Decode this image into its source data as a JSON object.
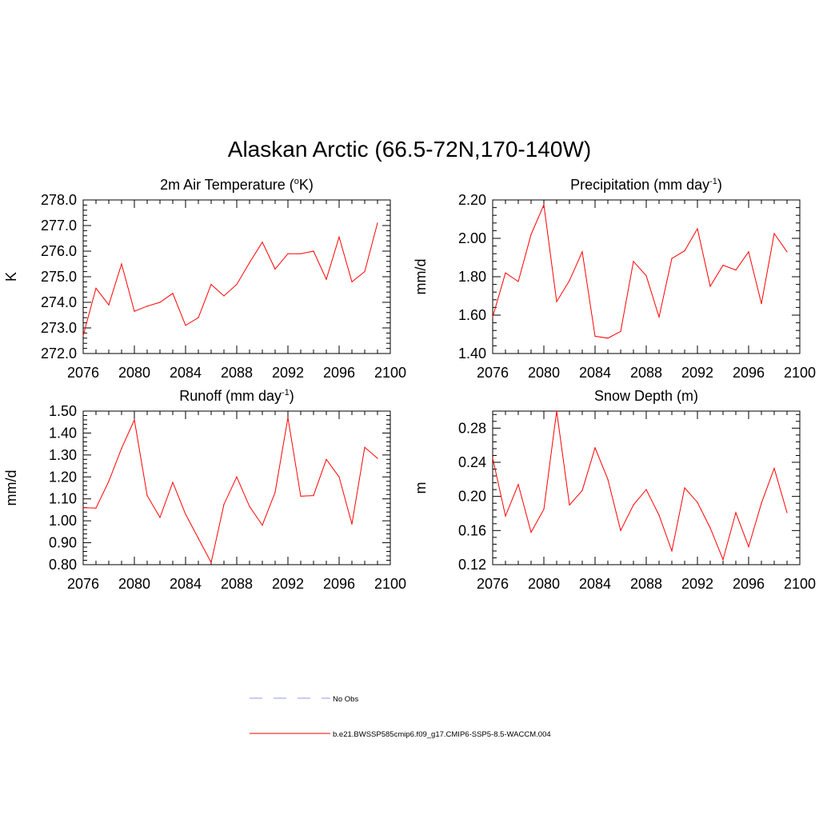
{
  "title": "Alaskan Arctic (66.5-72N,170-140W)",
  "legend": {
    "items": [
      {
        "label": "No Obs",
        "color": "#9a9ae0",
        "style": "dashed"
      },
      {
        "label": "b.e21.BWSSP585cmip6.f09_g17.CMIP6-SSP5-8.5-WACCM.004",
        "color": "#ff0000",
        "style": "solid"
      }
    ]
  },
  "chart_data": [
    {
      "type": "line",
      "title": "2m Air Temperature (",
      "title_sup": "o",
      "title_after": "K)",
      "ylabel": "K",
      "xlim": [
        2076,
        2100
      ],
      "ylim": [
        272.0,
        278.0
      ],
      "xticks": [
        "2076",
        "2080",
        "2084",
        "2088",
        "2092",
        "2096",
        "2100"
      ],
      "yticks": [
        "272.0",
        "273.0",
        "274.0",
        "275.0",
        "276.0",
        "277.0",
        "278.0"
      ],
      "x": [
        2076,
        2077,
        2078,
        2079,
        2080,
        2081,
        2082,
        2083,
        2084,
        2085,
        2086,
        2087,
        2088,
        2089,
        2090,
        2091,
        2092,
        2093,
        2094,
        2095,
        2096,
        2097,
        2098,
        2099
      ],
      "series": [
        {
          "color": "#ff0000",
          "values": [
            272.7,
            274.55,
            273.9,
            275.5,
            273.65,
            273.85,
            274.0,
            274.35,
            273.1,
            273.4,
            274.7,
            274.25,
            274.7,
            275.55,
            276.35,
            275.3,
            275.9,
            275.9,
            276.0,
            274.9,
            276.55,
            274.8,
            275.2,
            277.1
          ]
        }
      ]
    },
    {
      "type": "line",
      "title": "Precipitation (mm day",
      "title_sup": "-1",
      "title_after": ")",
      "ylabel": "mm/d",
      "xlim": [
        2076,
        2100
      ],
      "ylim": [
        1.4,
        2.2
      ],
      "xticks": [
        "2076",
        "2080",
        "2084",
        "2088",
        "2092",
        "2096",
        "2100"
      ],
      "yticks": [
        "1.40",
        "1.60",
        "1.80",
        "2.00",
        "2.20"
      ],
      "x": [
        2076,
        2077,
        2078,
        2079,
        2080,
        2081,
        2082,
        2083,
        2084,
        2085,
        2086,
        2087,
        2088,
        2089,
        2090,
        2091,
        2092,
        2093,
        2094,
        2095,
        2096,
        2097,
        2098,
        2099
      ],
      "series": [
        {
          "color": "#ff0000",
          "values": [
            1.59,
            1.82,
            1.775,
            2.02,
            2.175,
            1.67,
            1.78,
            1.93,
            1.49,
            1.48,
            1.515,
            1.88,
            1.805,
            1.59,
            1.895,
            1.935,
            2.05,
            1.75,
            1.86,
            1.835,
            1.93,
            1.66,
            2.025,
            1.93
          ]
        }
      ]
    },
    {
      "type": "line",
      "title": "Runoff (mm day",
      "title_sup": "-1",
      "title_after": ")",
      "ylabel": "mm/d",
      "xlim": [
        2076,
        2100
      ],
      "ylim": [
        0.8,
        1.5
      ],
      "xticks": [
        "2076",
        "2080",
        "2084",
        "2088",
        "2092",
        "2096",
        "2100"
      ],
      "yticks": [
        "0.80",
        "0.90",
        "1.00",
        "1.10",
        "1.20",
        "1.30",
        "1.40",
        "1.50"
      ],
      "x": [
        2076,
        2077,
        2078,
        2079,
        2080,
        2081,
        2082,
        2083,
        2084,
        2085,
        2086,
        2087,
        2088,
        2089,
        2090,
        2091,
        2092,
        2093,
        2094,
        2095,
        2096,
        2097,
        2098,
        2099
      ],
      "series": [
        {
          "color": "#ff0000",
          "values": [
            1.06,
            1.058,
            1.18,
            1.33,
            1.46,
            1.115,
            1.015,
            1.175,
            1.03,
            0.92,
            0.81,
            1.075,
            1.2,
            1.065,
            0.98,
            1.13,
            1.47,
            1.112,
            1.115,
            1.28,
            1.2,
            0.985,
            1.335,
            1.285
          ]
        }
      ]
    },
    {
      "type": "line",
      "title": "Snow Depth (m)",
      "title_sup": "",
      "title_after": "",
      "ylabel": "m",
      "xlim": [
        2076,
        2100
      ],
      "ylim": [
        0.12,
        0.3
      ],
      "xticks": [
        "2076",
        "2080",
        "2084",
        "2088",
        "2092",
        "2096",
        "2100"
      ],
      "yticks": [
        "0.12",
        "0.16",
        "0.20",
        "0.24",
        "0.28"
      ],
      "x": [
        2076,
        2077,
        2078,
        2079,
        2080,
        2081,
        2082,
        2083,
        2084,
        2085,
        2086,
        2087,
        2088,
        2089,
        2090,
        2091,
        2092,
        2093,
        2094,
        2095,
        2096,
        2097,
        2098,
        2099
      ],
      "series": [
        {
          "color": "#ff0000",
          "values": [
            0.245,
            0.177,
            0.214,
            0.158,
            0.185,
            0.3,
            0.19,
            0.207,
            0.257,
            0.22,
            0.16,
            0.19,
            0.208,
            0.178,
            0.136,
            0.21,
            0.193,
            0.163,
            0.126,
            0.181,
            0.141,
            0.192,
            0.233,
            0.181
          ]
        }
      ]
    }
  ]
}
